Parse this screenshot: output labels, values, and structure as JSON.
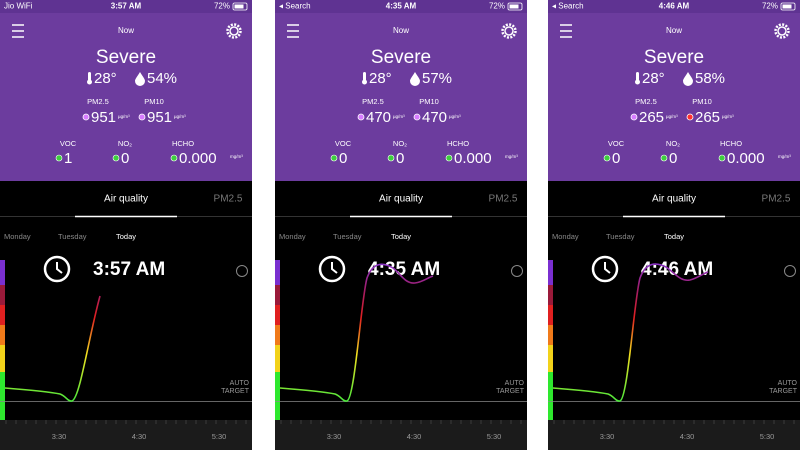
{
  "panels": [
    {
      "status": {
        "carrier": "Jio WiFi",
        "time": "3:57 AM",
        "battery": "72%"
      },
      "header": "Now",
      "level": "Severe",
      "temperature": "28°",
      "humidity": "54%",
      "pm25": {
        "label": "PM2.5",
        "value": "951",
        "unit": "µg/m³",
        "dot_color": "#d77bff"
      },
      "pm10": {
        "label": "PM10",
        "value": "951",
        "unit": "µg/m³",
        "dot_color": "#d77bff"
      },
      "voc": {
        "label": "VOC",
        "value": "1",
        "dot_color": "#3ecf3e"
      },
      "no2": {
        "label": "NO₂",
        "value": "0",
        "dot_color": "#3ecf3e"
      },
      "hcho": {
        "label": "HCHO",
        "value": "0.000",
        "unit": "mg/m³",
        "dot_color": "#3ecf3e"
      },
      "tabs": [
        "Air quality",
        "PM2.5"
      ],
      "days": [
        "Monday",
        "Tuesday",
        "Today"
      ],
      "clock": "3:57 AM",
      "target": [
        "AUTO",
        "TARGET"
      ],
      "time_ticks": [
        "3:30",
        "4:30",
        "5:30"
      ]
    },
    {
      "status": {
        "carrier": "◂ Search",
        "time": "4:35 AM",
        "battery": "72%"
      },
      "header": "Now",
      "level": "Severe",
      "temperature": "28°",
      "humidity": "57%",
      "pm25": {
        "label": "PM2.5",
        "value": "470",
        "unit": "µg/m³",
        "dot_color": "#d77bff"
      },
      "pm10": {
        "label": "PM10",
        "value": "470",
        "unit": "µg/m³",
        "dot_color": "#d77bff"
      },
      "voc": {
        "label": "VOC",
        "value": "0",
        "dot_color": "#3ecf3e"
      },
      "no2": {
        "label": "NO₂",
        "value": "0",
        "dot_color": "#3ecf3e"
      },
      "hcho": {
        "label": "HCHO",
        "value": "0.000",
        "unit": "mg/m³",
        "dot_color": "#3ecf3e"
      },
      "tabs": [
        "Air quality",
        "PM2.5"
      ],
      "days": [
        "Monday",
        "Tuesday",
        "Today"
      ],
      "clock": "4:35 AM",
      "target": [
        "AUTO",
        "TARGET"
      ],
      "time_ticks": [
        "3:30",
        "4:30",
        "5:30"
      ]
    },
    {
      "status": {
        "carrier": "◂ Search",
        "time": "4:46 AM",
        "battery": "72%"
      },
      "header": "Now",
      "level": "Severe",
      "temperature": "28°",
      "humidity": "58%",
      "pm25": {
        "label": "PM2.5",
        "value": "265",
        "unit": "µg/m³",
        "dot_color": "#d77bff"
      },
      "pm10": {
        "label": "PM10",
        "value": "265",
        "unit": "µg/m³",
        "dot_color": "#ff3030"
      },
      "voc": {
        "label": "VOC",
        "value": "0",
        "dot_color": "#3ecf3e"
      },
      "no2": {
        "label": "NO₂",
        "value": "0",
        "dot_color": "#3ecf3e"
      },
      "hcho": {
        "label": "HCHO",
        "value": "0.000",
        "unit": "mg/m³",
        "dot_color": "#3ecf3e"
      },
      "tabs": [
        "Air quality",
        "PM2.5"
      ],
      "days": [
        "Monday",
        "Tuesday",
        "Today"
      ],
      "clock": "4:46 AM",
      "target": [
        "AUTO",
        "TARGET"
      ],
      "time_ticks": [
        "3:30",
        "4:30",
        "5:30"
      ]
    }
  ]
}
